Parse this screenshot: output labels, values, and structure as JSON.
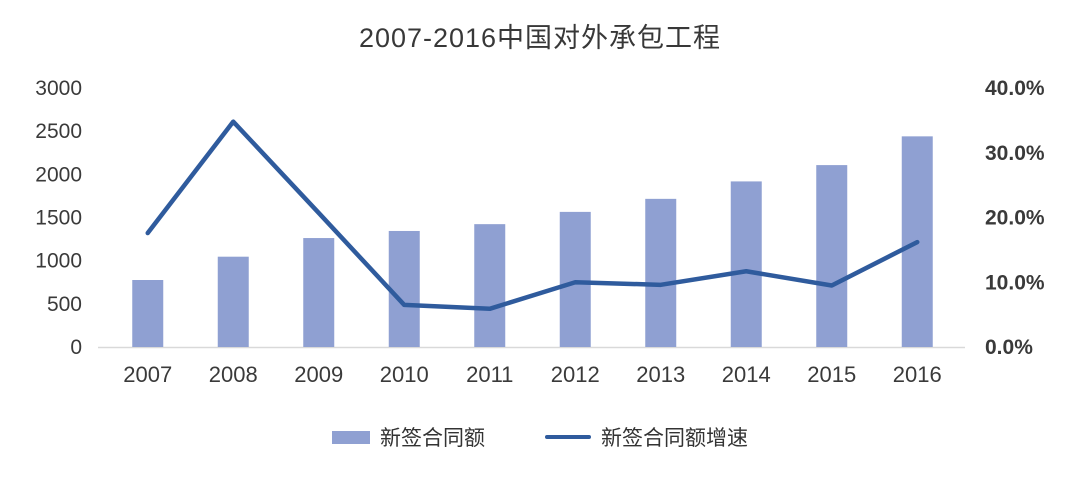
{
  "title": "2007-2016中国对外承包工程",
  "colors": {
    "bar": "#8FA0D2",
    "line": "#2F5B9D",
    "axis_line": "#D9D9D9",
    "text": "#3a3a3a"
  },
  "chart_data": {
    "type": "bar",
    "subtype": "bar+line combo, dual axis",
    "title": "2007-2016中国对外承包工程",
    "categories": [
      "2007",
      "2008",
      "2009",
      "2010",
      "2011",
      "2012",
      "2013",
      "2014",
      "2015",
      "2016"
    ],
    "series": [
      {
        "name": "新签合同额",
        "type": "bar",
        "axis": "left",
        "values": [
          776,
          1046,
          1262,
          1344,
          1423,
          1565,
          1716,
          1918,
          2107,
          2440
        ]
      },
      {
        "name": "新签合同额增速",
        "type": "line",
        "axis": "right",
        "values": [
          17.6,
          34.8,
          20.7,
          6.5,
          5.9,
          10.0,
          9.6,
          11.7,
          9.5,
          16.2
        ]
      }
    ],
    "left_axis": {
      "min": 0,
      "max": 3000,
      "step": 500,
      "labels": [
        "0",
        "500",
        "1000",
        "1500",
        "2000",
        "2500",
        "3000"
      ]
    },
    "right_axis": {
      "min": 0,
      "max": 40,
      "step": 10,
      "labels": [
        "0.0%",
        "10.0%",
        "20.0%",
        "30.0%",
        "40.0%"
      ]
    },
    "grid": false,
    "legend_position": "bottom"
  }
}
